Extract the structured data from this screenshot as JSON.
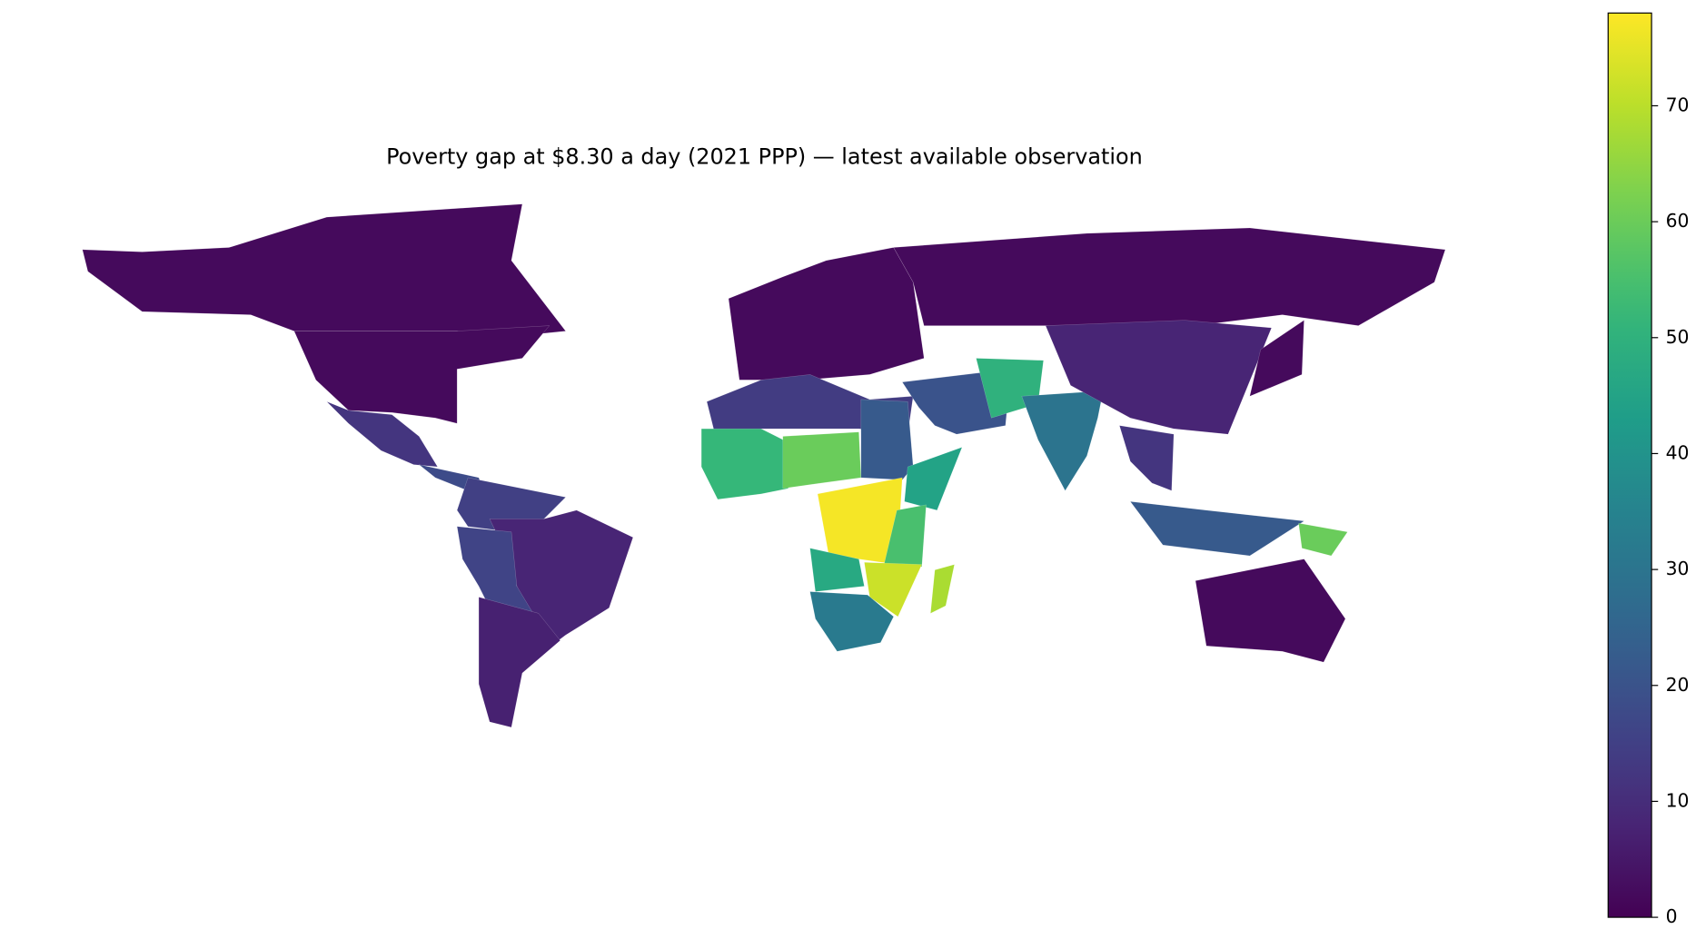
{
  "chart_data": {
    "type": "choropleth",
    "title": "Poverty gap at $8.30 a day (2021 PPP) — latest available observation",
    "colormap": "viridis",
    "values": [
      2,
      2,
      12,
      18,
      15,
      8,
      16,
      7,
      2,
      2,
      14,
      52,
      60,
      22,
      45,
      77,
      55,
      47,
      72,
      32,
      68,
      20,
      50,
      30,
      8,
      12,
      22,
      60,
      2,
      2
    ],
    "clim": [
      0,
      78
    ],
    "cticks": [
      0,
      10,
      20,
      30,
      40,
      50,
      60,
      70
    ]
  }
}
